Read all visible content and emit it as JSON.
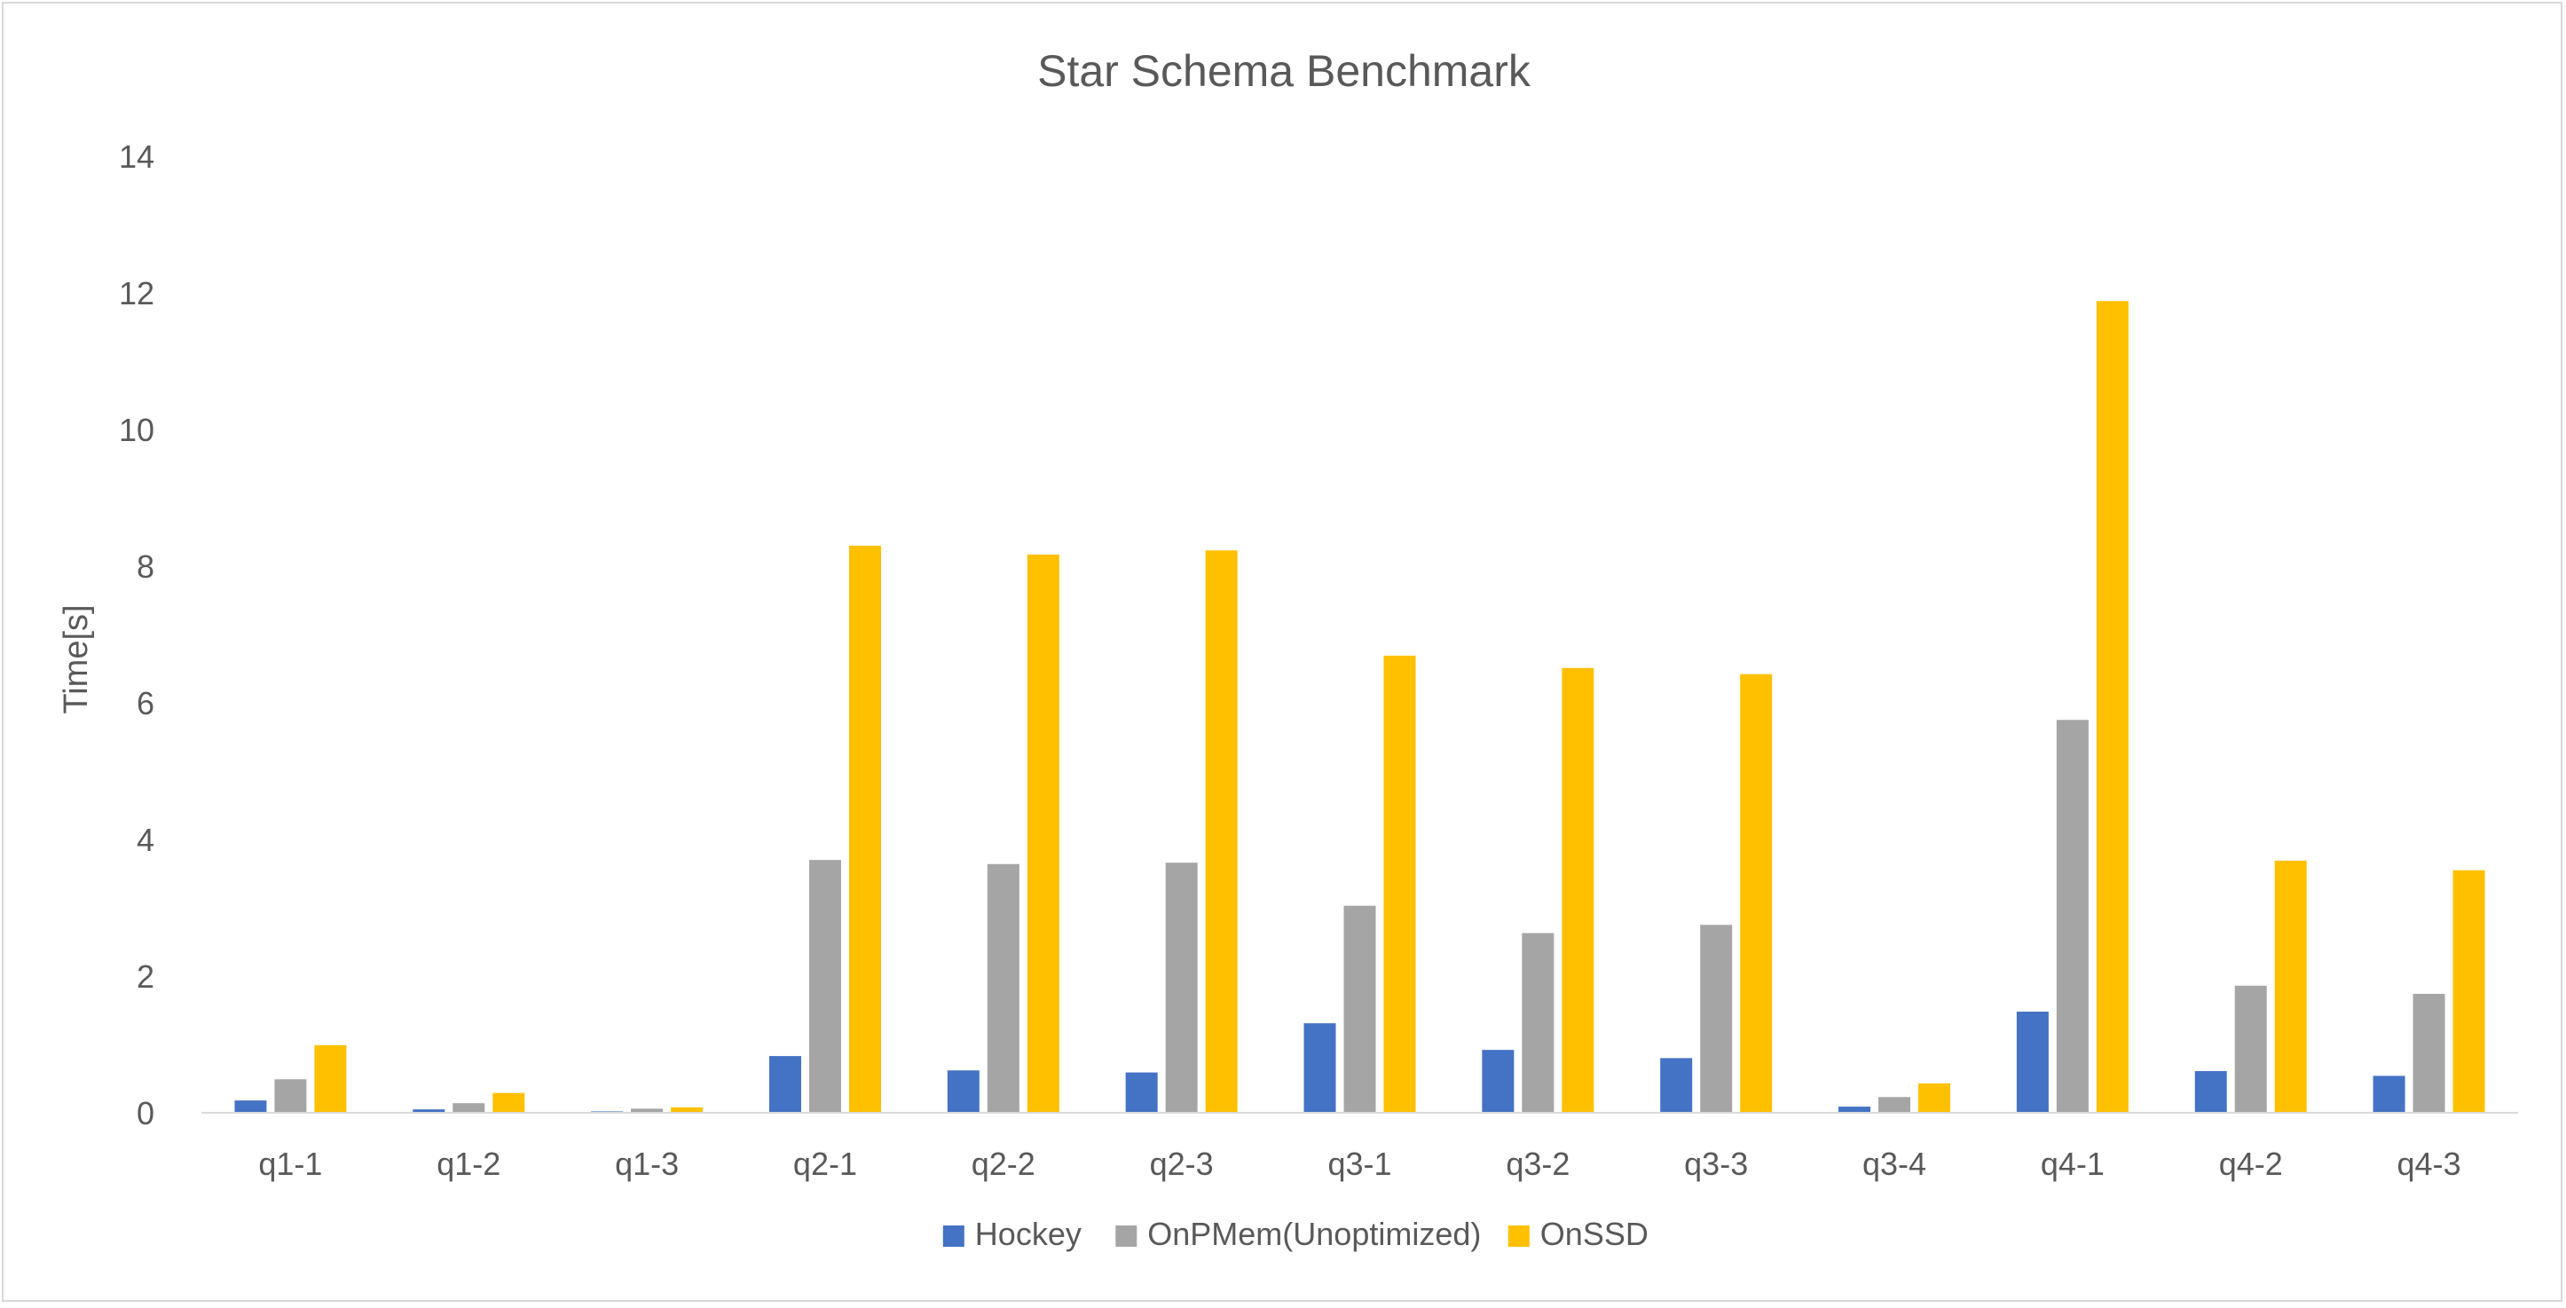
{
  "chart_data": {
    "type": "bar",
    "title": "Star Schema Benchmark",
    "xlabel": "",
    "ylabel": "Time[s]",
    "ylim": [
      0,
      14
    ],
    "yticks": [
      "0",
      "2",
      "4",
      "6",
      "8",
      "10",
      "12",
      "14"
    ],
    "grid": false,
    "legend_position": "bottom",
    "categories": [
      "q1-1",
      "q1-2",
      "q1-3",
      "q2-1",
      "q2-2",
      "q2-3",
      "q3-1",
      "q3-2",
      "q3-3",
      "q3-4",
      "q4-1",
      "q4-2",
      "q4-3"
    ],
    "series": [
      {
        "name": "Hockey",
        "color": "#4472c4",
        "values": [
          0.18,
          0.05,
          0.02,
          0.83,
          0.62,
          0.59,
          1.31,
          0.92,
          0.8,
          0.09,
          1.48,
          0.61,
          0.54
        ]
      },
      {
        "name": "OnPMem(Unoptimized)",
        "color": "#a5a5a5",
        "values": [
          0.49,
          0.14,
          0.06,
          3.7,
          3.64,
          3.66,
          3.03,
          2.63,
          2.75,
          0.23,
          5.75,
          1.86,
          1.74
        ]
      },
      {
        "name": "OnSSD",
        "color": "#ffc000",
        "values": [
          0.99,
          0.29,
          0.08,
          8.3,
          8.17,
          8.23,
          6.69,
          6.51,
          6.42,
          0.43,
          11.88,
          3.69,
          3.55
        ]
      }
    ]
  }
}
